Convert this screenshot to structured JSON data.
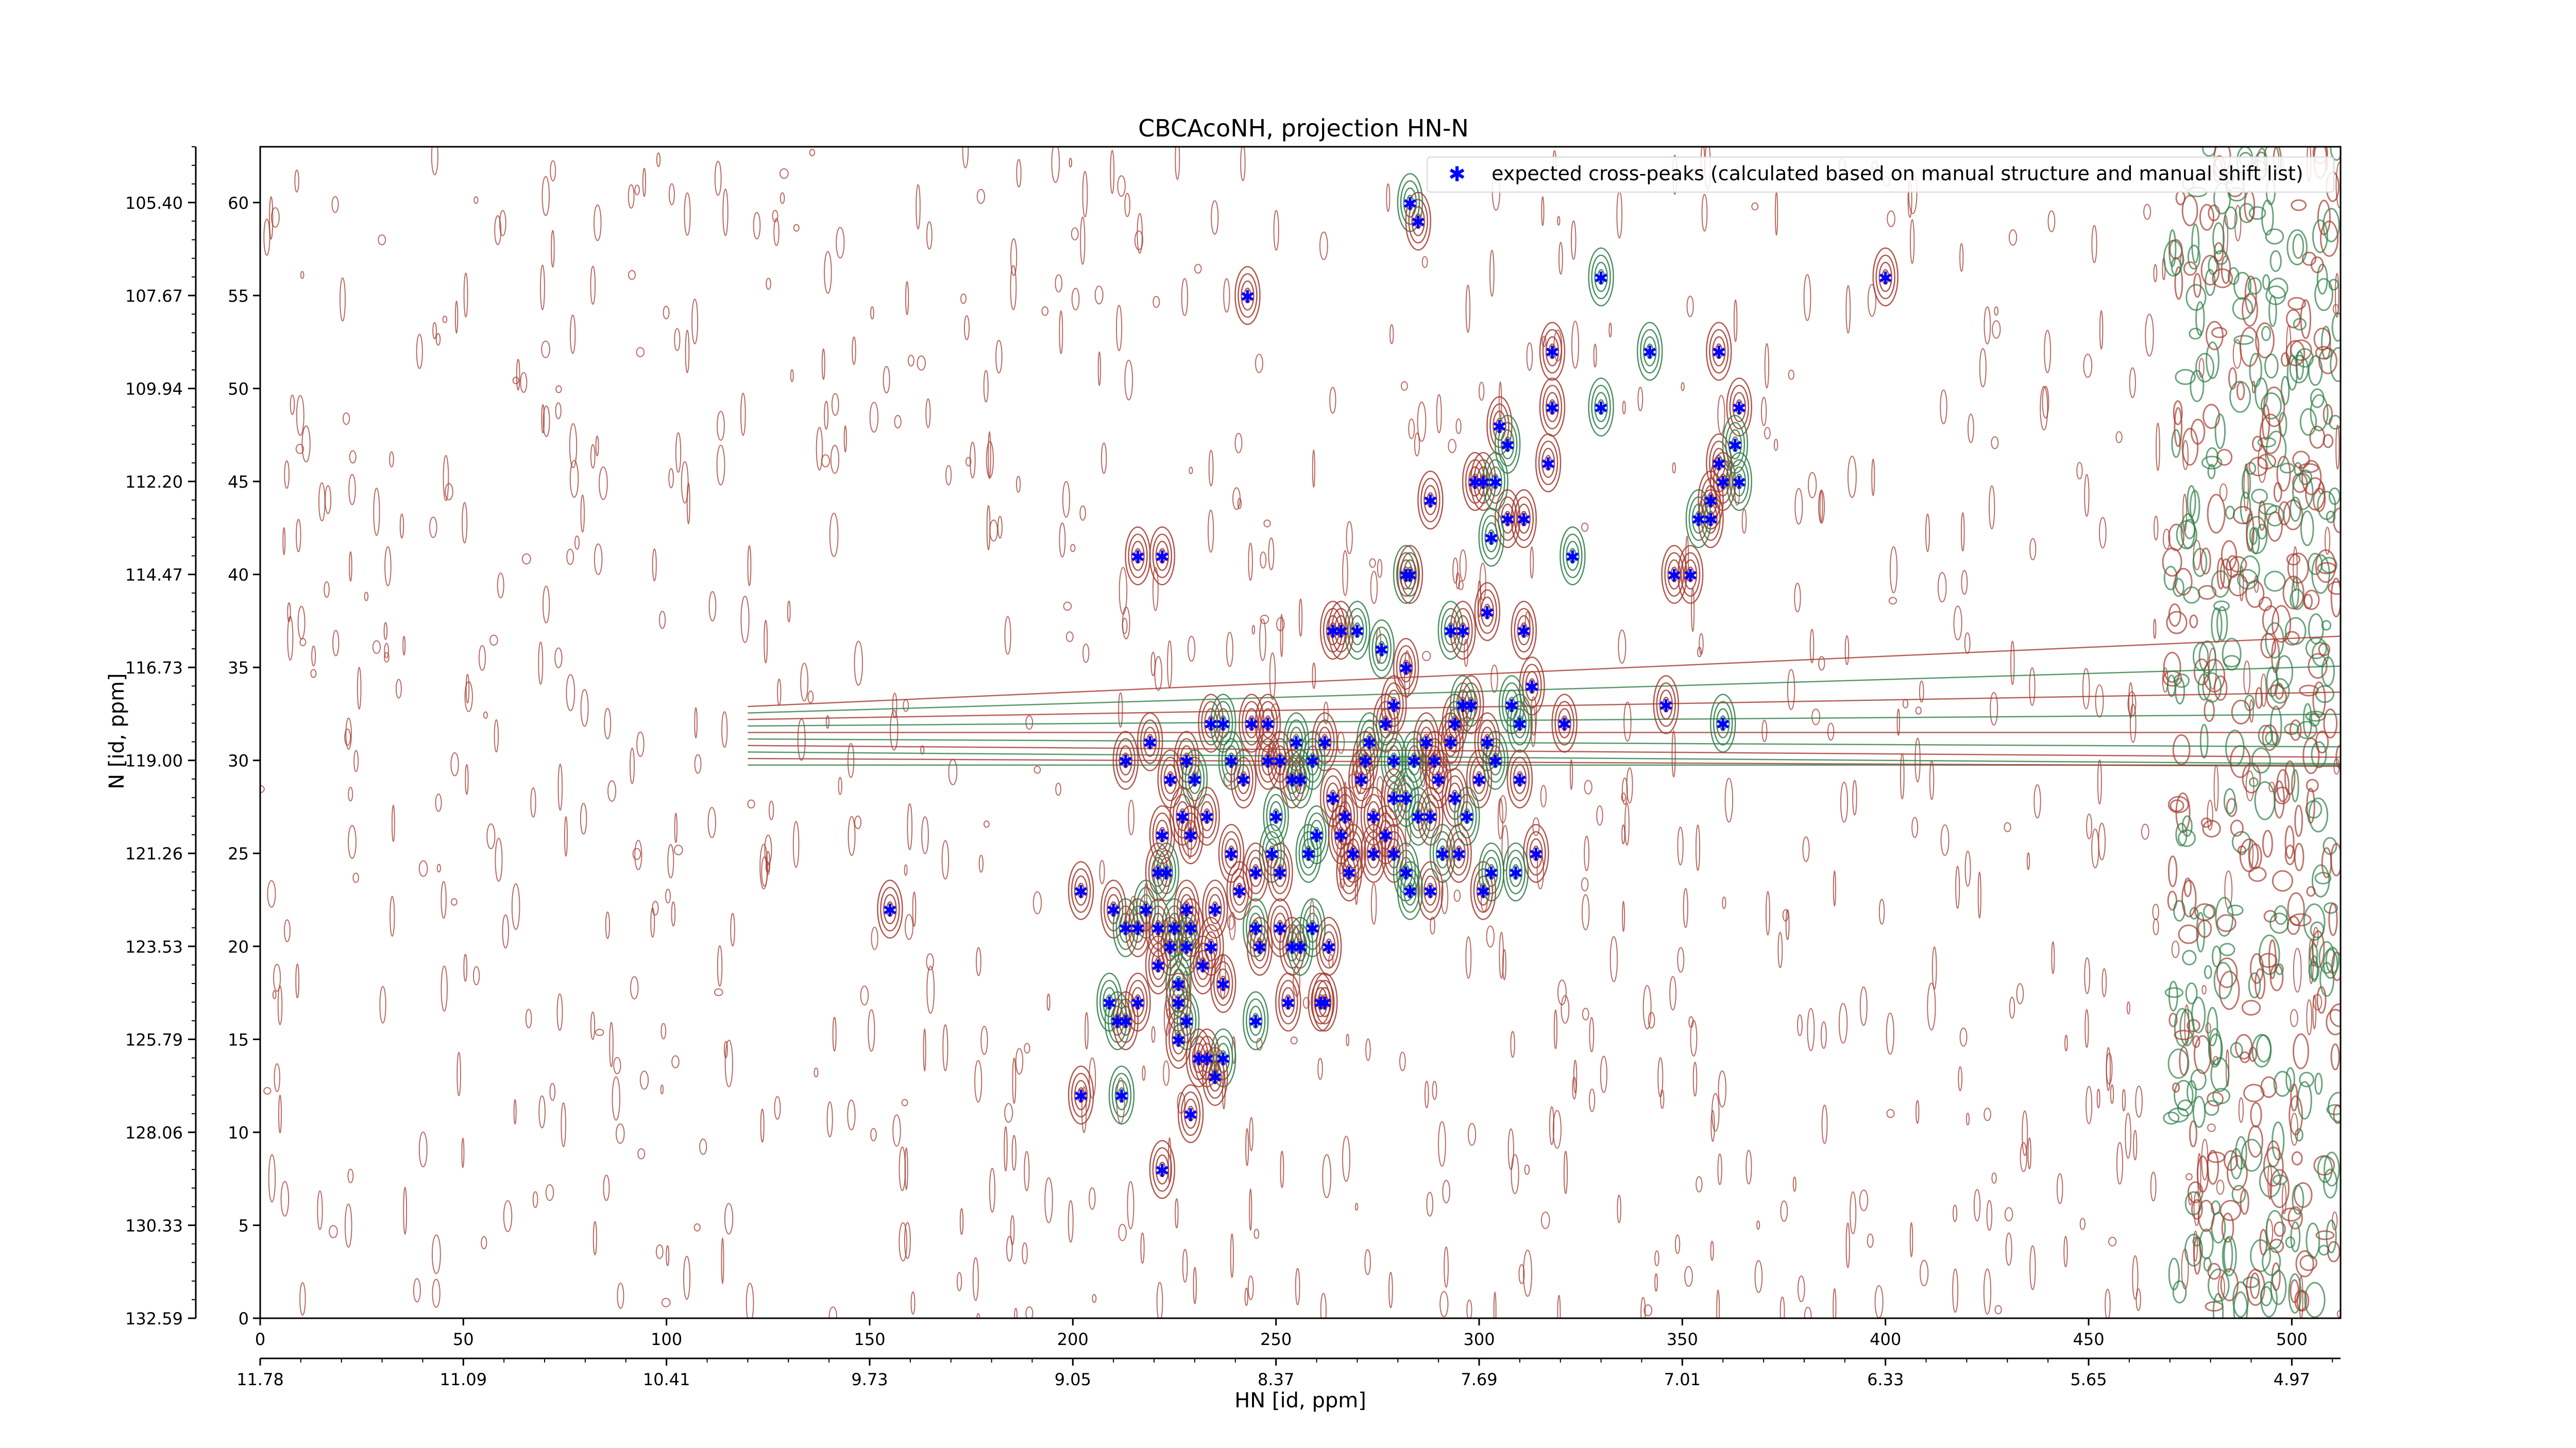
{
  "chart_data": {
    "type": "scatter",
    "title": "CBCAcoNH, projection HN-N",
    "xlabel": "HN [id, ppm]",
    "ylabel": "N [id, ppm]",
    "xlim": [
      0,
      512
    ],
    "ylim": [
      0,
      63
    ],
    "grid": false,
    "legend_position": "top-right",
    "x_ticks_index": [
      "0",
      "50",
      "100",
      "150",
      "200",
      "250",
      "300",
      "350",
      "400",
      "450",
      "500"
    ],
    "x_ticks_ppm": [
      "11.78",
      "11.09",
      "10.41",
      "9.73",
      "9.05",
      "8.37",
      "7.69",
      "7.01",
      "6.33",
      "5.65",
      "4.97"
    ],
    "y_ticks_index": [
      "0",
      "5",
      "10",
      "15",
      "20",
      "25",
      "30",
      "35",
      "40",
      "45",
      "50",
      "55",
      "60"
    ],
    "y_ticks_ppm": [
      "132.59",
      "130.33",
      "128.06",
      "125.79",
      "123.53",
      "121.26",
      "119.00",
      "116.73",
      "114.47",
      "112.20",
      "109.94",
      "107.67",
      "105.40"
    ],
    "series": [
      {
        "name": "expected cross-peaks (calculated based on manual structure and manual shift list)",
        "color": "#0000ff",
        "marker": "star",
        "points": [
          [
            283,
            60
          ],
          [
            285,
            59
          ],
          [
            243,
            55
          ],
          [
            330,
            56
          ],
          [
            400,
            56
          ],
          [
            318,
            52
          ],
          [
            342,
            52
          ],
          [
            359,
            52
          ],
          [
            318,
            49
          ],
          [
            330,
            49
          ],
          [
            364,
            49
          ],
          [
            305,
            48
          ],
          [
            307,
            47
          ],
          [
            317,
            46
          ],
          [
            359,
            46
          ],
          [
            363,
            47
          ],
          [
            299,
            45
          ],
          [
            301,
            45
          ],
          [
            304,
            45
          ],
          [
            357,
            44
          ],
          [
            360,
            45
          ],
          [
            364,
            45
          ],
          [
            288,
            44
          ],
          [
            357,
            43
          ],
          [
            354,
            43
          ],
          [
            307,
            43
          ],
          [
            311,
            43
          ],
          [
            303,
            42
          ],
          [
            216,
            41
          ],
          [
            222,
            41
          ],
          [
            323,
            41
          ],
          [
            348,
            40
          ],
          [
            352,
            40
          ],
          [
            282,
            40
          ],
          [
            283,
            40
          ],
          [
            302,
            38
          ],
          [
            293,
            37
          ],
          [
            311,
            37
          ],
          [
            296,
            37
          ],
          [
            270,
            37
          ],
          [
            264,
            37
          ],
          [
            266,
            37
          ],
          [
            276,
            36
          ],
          [
            282,
            35
          ],
          [
            313,
            34
          ],
          [
            308,
            33
          ],
          [
            279,
            33
          ],
          [
            294,
            32
          ],
          [
            296,
            33
          ],
          [
            277,
            32
          ],
          [
            298,
            33
          ],
          [
            310,
            32
          ],
          [
            321,
            32
          ],
          [
            346,
            33
          ],
          [
            360,
            32
          ],
          [
            219,
            31
          ],
          [
            234,
            32
          ],
          [
            237,
            32
          ],
          [
            244,
            32
          ],
          [
            248,
            32
          ],
          [
            255,
            31
          ],
          [
            293,
            31
          ],
          [
            262,
            31
          ],
          [
            273,
            31
          ],
          [
            287,
            31
          ],
          [
            302,
            31
          ],
          [
            279,
            30
          ],
          [
            213,
            30
          ],
          [
            228,
            30
          ],
          [
            239,
            30
          ],
          [
            248,
            30
          ],
          [
            251,
            30
          ],
          [
            259,
            30
          ],
          [
            272,
            30
          ],
          [
            271,
            29
          ],
          [
            284,
            30
          ],
          [
            289,
            30
          ],
          [
            300,
            29
          ],
          [
            304,
            30
          ],
          [
            310,
            29
          ],
          [
            224,
            29
          ],
          [
            230,
            29
          ],
          [
            242,
            29
          ],
          [
            254,
            29
          ],
          [
            256,
            29
          ],
          [
            264,
            28
          ],
          [
            279,
            28
          ],
          [
            282,
            28
          ],
          [
            290,
            29
          ],
          [
            294,
            28
          ],
          [
            297,
            27
          ],
          [
            227,
            27
          ],
          [
            233,
            27
          ],
          [
            250,
            27
          ],
          [
            267,
            27
          ],
          [
            274,
            27
          ],
          [
            285,
            27
          ],
          [
            288,
            27
          ],
          [
            229,
            26
          ],
          [
            260,
            26
          ],
          [
            266,
            26
          ],
          [
            277,
            26
          ],
          [
            291,
            25
          ],
          [
            295,
            25
          ],
          [
            279,
            25
          ],
          [
            282,
            24
          ],
          [
            222,
            26
          ],
          [
            239,
            25
          ],
          [
            249,
            25
          ],
          [
            245,
            24
          ],
          [
            251,
            24
          ],
          [
            258,
            25
          ],
          [
            269,
            25
          ],
          [
            314,
            25
          ],
          [
            309,
            24
          ],
          [
            268,
            24
          ],
          [
            221,
            24
          ],
          [
            223,
            24
          ],
          [
            288,
            23
          ],
          [
            301,
            23
          ],
          [
            303,
            24
          ],
          [
            274,
            25
          ],
          [
            202,
            23
          ],
          [
            283,
            23
          ],
          [
            241,
            23
          ],
          [
            155,
            22
          ],
          [
            218,
            22
          ],
          [
            228,
            22
          ],
          [
            235,
            22
          ],
          [
            245,
            21
          ],
          [
            251,
            21
          ],
          [
            210,
            22
          ],
          [
            213,
            21
          ],
          [
            216,
            21
          ],
          [
            221,
            21
          ],
          [
            225,
            21
          ],
          [
            229,
            21
          ],
          [
            224,
            20
          ],
          [
            228,
            20
          ],
          [
            234,
            20
          ],
          [
            232,
            19
          ],
          [
            259,
            21
          ],
          [
            263,
            20
          ],
          [
            254,
            20
          ],
          [
            256,
            20
          ],
          [
            246,
            20
          ],
          [
            221,
            19
          ],
          [
            226,
            18
          ],
          [
            237,
            18
          ],
          [
            262,
            17
          ],
          [
            209,
            17
          ],
          [
            216,
            17
          ],
          [
            226,
            17
          ],
          [
            245,
            16
          ],
          [
            253,
            17
          ],
          [
            261,
            17
          ],
          [
            211,
            16
          ],
          [
            213,
            16
          ],
          [
            226,
            15
          ],
          [
            228,
            16
          ],
          [
            231,
            14
          ],
          [
            233,
            14
          ],
          [
            237,
            14
          ],
          [
            235,
            13
          ],
          [
            202,
            12
          ],
          [
            212,
            12
          ],
          [
            229,
            11
          ],
          [
            222,
            8
          ]
        ]
      }
    ]
  }
}
